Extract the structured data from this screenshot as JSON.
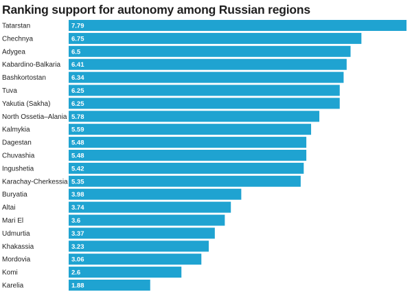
{
  "chart_data": {
    "type": "bar",
    "orientation": "horizontal",
    "title": "Ranking support for autonomy among Russian regions",
    "xlabel": "",
    "ylabel": "",
    "grid": false,
    "legend": "none",
    "bar_color": "#1fa3d1",
    "categories": [
      "Tatarstan",
      "Chechnya",
      "Adygea",
      "Kabardino-Balkaria",
      "Bashkortostan",
      "Tuva",
      "Yakutia (Sakha)",
      "North Ossetia–Alania",
      "Kalmykia",
      "Dagestan",
      "Chuvashia",
      "Ingushetia",
      "Karachay-Cherkessia",
      "Buryatia",
      "Altai",
      "Mari El",
      "Udmurtia",
      "Khakassia",
      "Mordovia",
      "Komi",
      "Karelia"
    ],
    "values": [
      7.79,
      6.75,
      6.5,
      6.41,
      6.34,
      6.25,
      6.25,
      5.78,
      5.59,
      5.48,
      5.48,
      5.42,
      5.35,
      3.98,
      3.74,
      3.6,
      3.37,
      3.23,
      3.06,
      2.6,
      1.88
    ],
    "value_labels": [
      "7.79",
      "6.75",
      "6.5",
      "6.41",
      "6.34",
      "6.25",
      "6.25",
      "5.78",
      "5.59",
      "5.48",
      "5.48",
      "5.42",
      "5.35",
      "3.98",
      "3.74",
      "3.6",
      "3.37",
      "3.23",
      "3.06",
      "2.6",
      "1.88"
    ],
    "xlim": [
      0,
      7.79
    ]
  }
}
